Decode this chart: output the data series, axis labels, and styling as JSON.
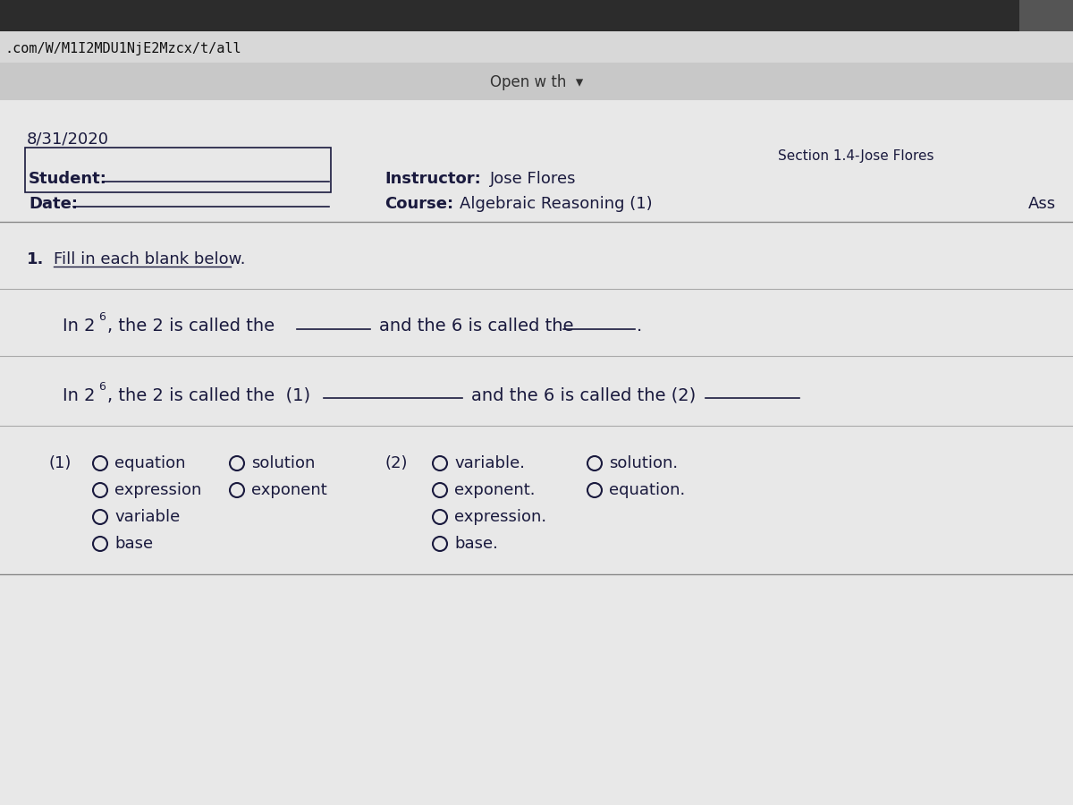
{
  "bg_top_bar": "#2c2c2c",
  "bg_url_bar": "#d8d8d8",
  "bg_open_bar": "#c8c8c8",
  "bg_main": "#d0d0d0",
  "bg_content": "#e8e8e8",
  "url_text": ".com/W/M1I2MDU1NjE2Mzcx/t/all",
  "open_with_text": "Open w th  ▾",
  "date_top": "8/31/2020",
  "section_label": "Section 1.4-Jose Flores",
  "student_label": "Student:",
  "date_label": "Date:",
  "instructor_label": "Instructor:",
  "instructor_name": "Jose Flores",
  "course_label": "Course:",
  "course_name": "Algebraic Reasoning (1)",
  "ass_text": "Ass",
  "question_num": "1.",
  "question_text": "Fill in each blank below.",
  "text_color": "#1a1a3e",
  "line_color": "#1a1a3e",
  "circle_color": "#1a1a3e",
  "font_size_main": 13,
  "font_size_small": 11,
  "font_size_url": 11,
  "font_size_section": 11
}
